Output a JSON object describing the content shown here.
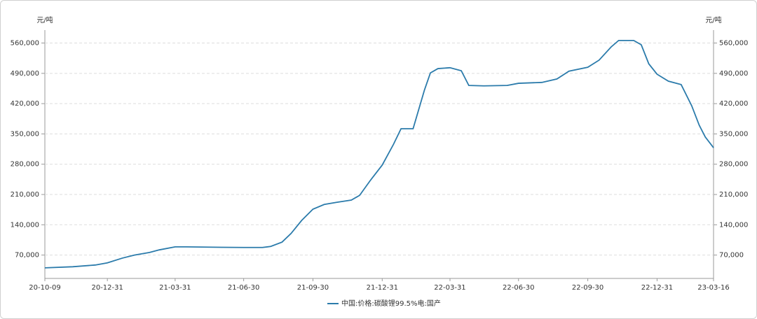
{
  "chart_data": {
    "type": "line",
    "y_unit": "元/吨",
    "x": [
      "20-10-09",
      "20-11-15",
      "20-12-15",
      "20-12-31",
      "21-01-20",
      "21-02-05",
      "21-02-25",
      "21-03-10",
      "21-03-31",
      "21-04-15",
      "21-05-31",
      "21-06-30",
      "21-07-25",
      "21-08-05",
      "21-08-20",
      "21-09-01",
      "21-09-15",
      "21-09-30",
      "21-10-15",
      "21-11-01",
      "21-11-20",
      "21-12-01",
      "21-12-15",
      "21-12-31",
      "22-01-15",
      "22-01-25",
      "22-02-10",
      "22-02-25",
      "22-03-05",
      "22-03-15",
      "22-03-31",
      "22-04-15",
      "22-04-25",
      "22-05-15",
      "22-06-15",
      "22-06-30",
      "22-07-31",
      "22-08-20",
      "22-09-05",
      "22-09-30",
      "22-10-15",
      "22-10-31",
      "22-11-10",
      "22-11-30",
      "22-12-10",
      "22-12-20",
      "22-12-31",
      "23-01-15",
      "23-02-01",
      "23-02-15",
      "23-02-25",
      "23-03-05",
      "23-03-16"
    ],
    "series": [
      {
        "name": "中国:价格:碳酸锂99.5%电:国产",
        "color": "#2b7bab",
        "values": [
          40500,
          43000,
          47000,
          52000,
          63000,
          70000,
          76000,
          82000,
          89000,
          89000,
          88000,
          87500,
          87500,
          90000,
          100000,
          120000,
          150000,
          176000,
          187000,
          192000,
          197000,
          208000,
          242000,
          278000,
          326000,
          362000,
          362000,
          451000,
          491000,
          501000,
          503000,
          496000,
          462000,
          461000,
          462000,
          467000,
          469000,
          477000,
          495000,
          504000,
          520500,
          551000,
          566000,
          566000,
          556000,
          512000,
          488000,
          472000,
          464000,
          415000,
          370000,
          343000,
          318000
        ]
      }
    ],
    "xlim": [
      "20-10-09",
      "23-03-16"
    ],
    "xticks": [
      "20-10-09",
      "20-12-31",
      "21-03-31",
      "21-06-30",
      "21-09-30",
      "21-12-31",
      "22-03-31",
      "22-06-30",
      "22-09-30",
      "22-12-31",
      "23-03-16"
    ],
    "ylim": [
      16000,
      590000
    ],
    "yticks": [
      {
        "value": 70000,
        "label": "70,000"
      },
      {
        "value": 140000,
        "label": "140,000"
      },
      {
        "value": 210000,
        "label": "210,000"
      },
      {
        "value": 280000,
        "label": "280,000"
      },
      {
        "value": 350000,
        "label": "350,000"
      },
      {
        "value": 420000,
        "label": "420,000"
      },
      {
        "value": 490000,
        "label": "490,000"
      },
      {
        "value": 560000,
        "label": "560,000"
      }
    ],
    "grid": true,
    "legend": "bottom"
  }
}
